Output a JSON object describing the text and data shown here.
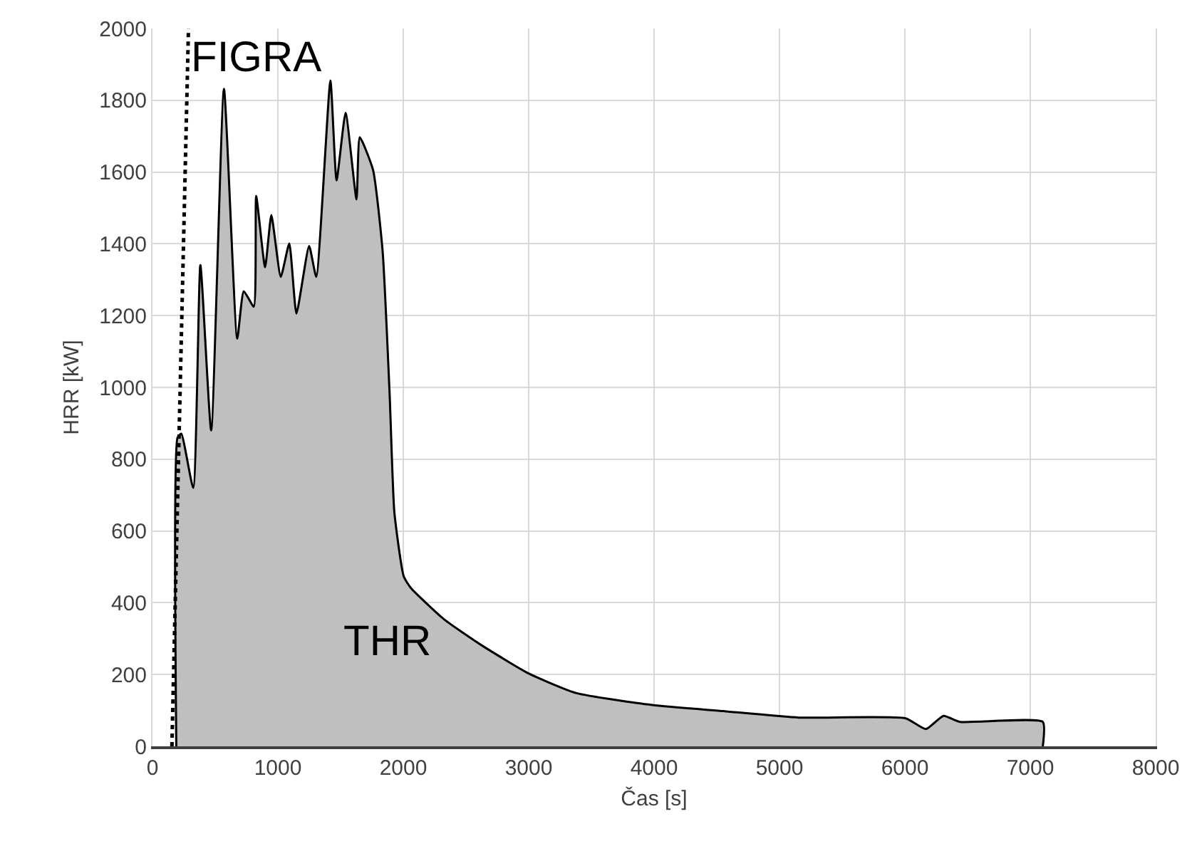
{
  "chart_data": {
    "type": "area",
    "xlabel": "Čas [s]",
    "ylabel": "HRR [kW]",
    "xlim": [
      0,
      8000
    ],
    "xticks": [
      0,
      1000,
      2000,
      3000,
      4000,
      5000,
      6000,
      7000,
      8000
    ],
    "ylim": [
      0,
      2000
    ],
    "yticks": [
      0,
      200,
      400,
      600,
      800,
      1000,
      1200,
      1400,
      1600,
      1800,
      2000
    ],
    "grid": true,
    "series": [
      {
        "color": "#bfbfbf",
        "line_style": "solid",
        "x": [
          190,
          200,
          230,
          325,
          382,
          468,
          570,
          676,
          728,
          808,
          827,
          898,
          948,
          1023,
          1091,
          1148,
          1249,
          1306,
          1419,
          1468,
          1540,
          1627,
          1653,
          1759,
          1835,
          1891,
          1929,
          2004,
          2061,
          2325,
          2627,
          3005,
          3383,
          3986,
          4553,
          5156,
          6006,
          6168,
          6308,
          6440,
          7100,
          7100
        ],
        "values": [
          0,
          860,
          871,
          720,
          1341,
          880,
          1832,
          1136,
          1268,
          1225,
          1533,
          1335,
          1480,
          1308,
          1401,
          1206,
          1394,
          1308,
          1855,
          1577,
          1765,
          1524,
          1697,
          1606,
          1381,
          983,
          652,
          473,
          441,
          354,
          281,
          202,
          148,
          115,
          98,
          80,
          78,
          48,
          85,
          68,
          68,
          0
        ]
      },
      {
        "type": "line",
        "color": "#000000",
        "line_style": "dotted",
        "x": [
          155,
          287
        ],
        "values": [
          0,
          2000
        ]
      }
    ],
    "annotations": [
      {
        "text": "FIGRA",
        "x": 287,
        "y": 1920
      },
      "THR"
    ]
  }
}
